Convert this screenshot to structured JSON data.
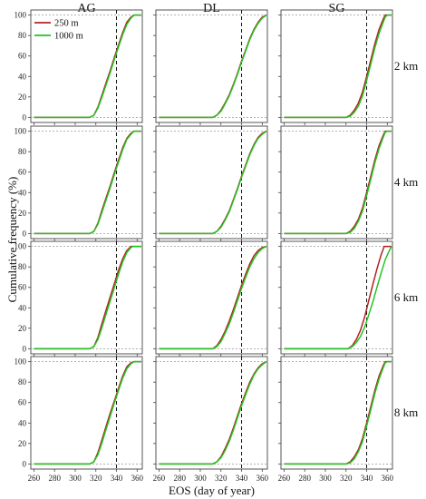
{
  "chart_data": {
    "type": "line",
    "ylabel": "Cumulative frequency (%)",
    "xlabel": "EOS (day of year)",
    "columns": [
      "AG",
      "DL",
      "SG"
    ],
    "rows": [
      "2 km",
      "4 km",
      "6 km",
      "8 km"
    ],
    "xlim": [
      257,
      365
    ],
    "ylim": [
      -5,
      105
    ],
    "xticks": [
      260,
      280,
      300,
      320,
      340,
      360
    ],
    "yticks": [
      0,
      20,
      40,
      60,
      80,
      100
    ],
    "reference_line_x": 340,
    "grid": false,
    "legend": {
      "placement": "top-left",
      "entries": [
        {
          "label": "250 m",
          "color": "#b22222"
        },
        {
          "label": "1000 m",
          "color": "#22c522"
        }
      ]
    },
    "series_style": {
      "250 m": "#b22222",
      "1000 m": "#22c522"
    },
    "panels": [
      {
        "col": "AG",
        "row": "2 km",
        "series": [
          {
            "name": "250 m",
            "x": [
              260,
              314,
              318,
              322,
              326,
              330,
              334,
              338,
              342,
              346,
              350,
              354,
              357,
              360,
              364
            ],
            "y": [
              0,
              0,
              2,
              10,
              22,
              34,
              46,
              59,
              71,
              83,
              93,
              98,
              100,
              100,
              100
            ]
          },
          {
            "name": "1000 m",
            "x": [
              260,
              314,
              318,
              322,
              326,
              330,
              334,
              338,
              342,
              346,
              350,
              354,
              357,
              360,
              364
            ],
            "y": [
              0,
              0,
              2,
              9,
              20,
              32,
              44,
              57,
              69,
              81,
              91,
              97,
              100,
              100,
              100
            ]
          }
        ]
      },
      {
        "col": "DL",
        "row": "2 km",
        "series": [
          {
            "name": "250 m",
            "x": [
              260,
              312,
              316,
              320,
              324,
              328,
              332,
              336,
              340,
              344,
              348,
              352,
              356,
              360,
              364
            ],
            "y": [
              0,
              0,
              2,
              7,
              14,
              22,
              32,
              43,
              55,
              66,
              77,
              86,
              93,
              98,
              100
            ]
          },
          {
            "name": "1000 m",
            "x": [
              260,
              312,
              316,
              320,
              324,
              328,
              332,
              336,
              340,
              344,
              348,
              352,
              356,
              360,
              364
            ],
            "y": [
              0,
              0,
              2,
              6,
              13,
              21,
              31,
              42,
              54,
              65,
              76,
              85,
              92,
              97,
              100
            ]
          }
        ]
      },
      {
        "col": "SG",
        "row": "2 km",
        "series": [
          {
            "name": "250 m",
            "x": [
              260,
              320,
              324,
              328,
              332,
              336,
              340,
              344,
              348,
              352,
              356,
              358,
              360,
              364
            ],
            "y": [
              0,
              0,
              2,
              7,
              14,
              25,
              40,
              56,
              72,
              86,
              96,
              100,
              100,
              100
            ]
          },
          {
            "name": "1000 m",
            "x": [
              260,
              320,
              324,
              328,
              332,
              336,
              340,
              344,
              348,
              352,
              356,
              358,
              360,
              364
            ],
            "y": [
              0,
              0,
              1,
              5,
              11,
              21,
              36,
              52,
              68,
              82,
              93,
              98,
              100,
              100
            ]
          }
        ]
      },
      {
        "col": "AG",
        "row": "4 km",
        "series": [
          {
            "name": "250 m",
            "x": [
              260,
              314,
              318,
              322,
              326,
              330,
              334,
              338,
              342,
              346,
              350,
              354,
              357,
              360,
              364
            ],
            "y": [
              0,
              0,
              2,
              10,
              23,
              35,
              47,
              60,
              72,
              84,
              93,
              98,
              100,
              100,
              100
            ]
          },
          {
            "name": "1000 m",
            "x": [
              260,
              314,
              318,
              322,
              326,
              330,
              334,
              338,
              342,
              346,
              350,
              354,
              357,
              360,
              364
            ],
            "y": [
              0,
              0,
              2,
              9,
              21,
              33,
              45,
              58,
              70,
              82,
              92,
              97,
              100,
              100,
              100
            ]
          }
        ]
      },
      {
        "col": "DL",
        "row": "4 km",
        "series": [
          {
            "name": "250 m",
            "x": [
              260,
              312,
              316,
              320,
              324,
              328,
              332,
              336,
              340,
              344,
              348,
              352,
              356,
              360,
              364
            ],
            "y": [
              0,
              0,
              2,
              7,
              14,
              22,
              33,
              44,
              56,
              67,
              78,
              87,
              94,
              98,
              100
            ]
          },
          {
            "name": "1000 m",
            "x": [
              260,
              312,
              316,
              320,
              324,
              328,
              332,
              336,
              340,
              344,
              348,
              352,
              356,
              360,
              364
            ],
            "y": [
              0,
              0,
              2,
              6,
              13,
              21,
              32,
              43,
              55,
              66,
              77,
              86,
              93,
              97,
              100
            ]
          }
        ]
      },
      {
        "col": "SG",
        "row": "4 km",
        "series": [
          {
            "name": "250 m",
            "x": [
              260,
              320,
              324,
              328,
              332,
              336,
              340,
              344,
              348,
              352,
              356,
              358,
              360,
              364
            ],
            "y": [
              0,
              0,
              2,
              7,
              14,
              25,
              40,
              56,
              72,
              86,
              96,
              100,
              100,
              100
            ]
          },
          {
            "name": "1000 m",
            "x": [
              260,
              320,
              324,
              328,
              332,
              336,
              340,
              344,
              348,
              352,
              356,
              358,
              360,
              364
            ],
            "y": [
              0,
              0,
              1,
              5,
              12,
              22,
              37,
              53,
              69,
              83,
              94,
              99,
              100,
              100
            ]
          }
        ]
      },
      {
        "col": "AG",
        "row": "6 km",
        "series": [
          {
            "name": "250 m",
            "x": [
              260,
              314,
              318,
              322,
              326,
              330,
              334,
              338,
              342,
              346,
              350,
              354,
              356,
              360,
              364
            ],
            "y": [
              0,
              0,
              2,
              11,
              25,
              38,
              51,
              64,
              77,
              88,
              96,
              100,
              100,
              100,
              100
            ]
          },
          {
            "name": "1000 m",
            "x": [
              260,
              314,
              318,
              322,
              326,
              330,
              334,
              338,
              342,
              346,
              350,
              354,
              356,
              360,
              364
            ],
            "y": [
              0,
              0,
              2,
              9,
              21,
              34,
              47,
              60,
              73,
              85,
              94,
              99,
              100,
              100,
              100
            ]
          }
        ]
      },
      {
        "col": "DL",
        "row": "6 km",
        "series": [
          {
            "name": "250 m",
            "x": [
              260,
              312,
              316,
              320,
              324,
              328,
              332,
              336,
              340,
              344,
              348,
              352,
              356,
              360,
              364
            ],
            "y": [
              0,
              0,
              3,
              9,
              17,
              27,
              38,
              50,
              62,
              73,
              83,
              91,
              96,
              99,
              100
            ]
          },
          {
            "name": "1000 m",
            "x": [
              260,
              312,
              316,
              320,
              324,
              328,
              332,
              336,
              340,
              344,
              348,
              352,
              356,
              360,
              364
            ],
            "y": [
              0,
              0,
              2,
              7,
              15,
              24,
              35,
              47,
              59,
              70,
              80,
              88,
              94,
              98,
              100
            ]
          }
        ]
      },
      {
        "col": "SG",
        "row": "6 km",
        "series": [
          {
            "name": "250 m",
            "x": [
              260,
              322,
              326,
              330,
              334,
              338,
              342,
              346,
              350,
              354,
              357,
              360,
              364
            ],
            "y": [
              0,
              0,
              3,
              9,
              18,
              31,
              47,
              63,
              78,
              92,
              100,
              100,
              100
            ]
          },
          {
            "name": "1000 m",
            "x": [
              260,
              322,
              326,
              330,
              334,
              338,
              342,
              346,
              350,
              354,
              358,
              362,
              364
            ],
            "y": [
              0,
              0,
              2,
              6,
              12,
              21,
              33,
              46,
              60,
              74,
              87,
              96,
              100
            ]
          }
        ]
      },
      {
        "col": "AG",
        "row": "8 km",
        "series": [
          {
            "name": "250 m",
            "x": [
              260,
              314,
              318,
              322,
              326,
              330,
              334,
              338,
              342,
              346,
              350,
              354,
              357,
              360,
              364
            ],
            "y": [
              0,
              0,
              2,
              11,
              24,
              37,
              50,
              62,
              74,
              86,
              95,
              99,
              100,
              100,
              100
            ]
          },
          {
            "name": "1000 m",
            "x": [
              260,
              314,
              318,
              322,
              326,
              330,
              334,
              338,
              342,
              346,
              350,
              354,
              357,
              360,
              364
            ],
            "y": [
              0,
              0,
              2,
              9,
              21,
              34,
              47,
              60,
              72,
              84,
              93,
              98,
              100,
              100,
              100
            ]
          }
        ]
      },
      {
        "col": "DL",
        "row": "8 km",
        "series": [
          {
            "name": "250 m",
            "x": [
              260,
              312,
              316,
              320,
              324,
              328,
              332,
              336,
              340,
              344,
              348,
              352,
              356,
              360,
              364
            ],
            "y": [
              0,
              0,
              2,
              7,
              15,
              24,
              35,
              47,
              59,
              70,
              80,
              88,
              94,
              98,
              100
            ]
          },
          {
            "name": "1000 m",
            "x": [
              260,
              312,
              316,
              320,
              324,
              328,
              332,
              336,
              340,
              344,
              348,
              352,
              356,
              360,
              364
            ],
            "y": [
              0,
              0,
              2,
              6,
              13,
              22,
              33,
              45,
              57,
              68,
              78,
              87,
              93,
              97,
              100
            ]
          }
        ]
      },
      {
        "col": "SG",
        "row": "8 km",
        "series": [
          {
            "name": "250 m",
            "x": [
              260,
              320,
              324,
              328,
              332,
              336,
              340,
              344,
              348,
              352,
              356,
              358,
              360,
              364
            ],
            "y": [
              0,
              0,
              2,
              7,
              14,
              25,
              40,
              56,
              72,
              86,
              96,
              100,
              100,
              100
            ]
          },
          {
            "name": "1000 m",
            "x": [
              260,
              320,
              324,
              328,
              332,
              336,
              340,
              344,
              348,
              352,
              356,
              358,
              360,
              364
            ],
            "y": [
              0,
              0,
              1,
              5,
              12,
              22,
              37,
              53,
              69,
              83,
              94,
              99,
              100,
              100
            ]
          }
        ]
      }
    ]
  }
}
